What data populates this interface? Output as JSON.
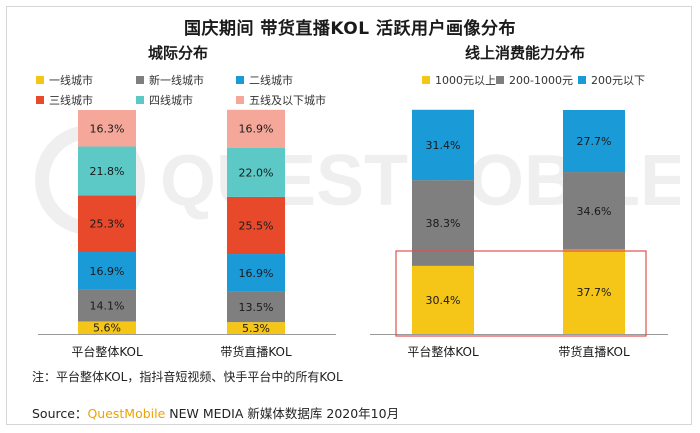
{
  "main_title": "国庆期间 带货直播KOL 活跃用户画像分布",
  "colors": {
    "first_tier": "#f5c518",
    "new_first_tier": "#7f7f7f",
    "second_tier": "#1a9ad6",
    "third_tier": "#e8492b",
    "fourth_tier": "#5cc9c7",
    "fifth_tier": "#f5a89a",
    "highlight_box": "#e05050"
  },
  "chart_data": [
    {
      "type": "bar",
      "stacked": true,
      "title": "城际分布",
      "categories": [
        "平台整体KOL",
        "带货直播KOL"
      ],
      "ylim": [
        0,
        100
      ],
      "legend_position": "top",
      "series": [
        {
          "name": "一线城市",
          "values": [
            5.6,
            5.3
          ],
          "labels": [
            "5.6%",
            "5.3%"
          ]
        },
        {
          "name": "新一线城市",
          "values": [
            14.1,
            13.5
          ],
          "labels": [
            "14.1%",
            "13.5%"
          ]
        },
        {
          "name": "二线城市",
          "values": [
            16.9,
            16.9
          ],
          "labels": [
            "16.9%",
            "16.9%"
          ]
        },
        {
          "name": "三线城市",
          "values": [
            25.3,
            25.5
          ],
          "labels": [
            "25.3%",
            "25.5%"
          ]
        },
        {
          "name": "四线城市",
          "values": [
            21.8,
            22.0
          ],
          "labels": [
            "21.8%",
            "22.0%"
          ]
        },
        {
          "name": "五线及以下城市",
          "values": [
            16.3,
            16.9
          ],
          "labels": [
            "16.3%",
            "16.9%"
          ]
        }
      ]
    },
    {
      "type": "bar",
      "stacked": true,
      "title": "线上消费能力分布",
      "categories": [
        "平台整体KOL",
        "带货直播KOL"
      ],
      "ylim": [
        0,
        100
      ],
      "legend_position": "top",
      "series": [
        {
          "name": "1000元以上",
          "values": [
            30.4,
            37.7
          ],
          "labels": [
            "30.4%",
            "37.7%"
          ]
        },
        {
          "name": "200-1000元",
          "values": [
            38.3,
            34.6
          ],
          "labels": [
            "38.3%",
            "34.6%"
          ]
        },
        {
          "name": "200元以下",
          "values": [
            31.4,
            27.7
          ],
          "labels": [
            "31.4%",
            "27.7%"
          ]
        }
      ]
    }
  ],
  "footnote": "注：平台整体KOL，指抖音短视频、快手平台中的所有KOL",
  "source": {
    "prefix": "Source：",
    "brand": "QuestMobile",
    "suffix": " NEW MEDIA 新媒体数据库 2020年10月"
  }
}
